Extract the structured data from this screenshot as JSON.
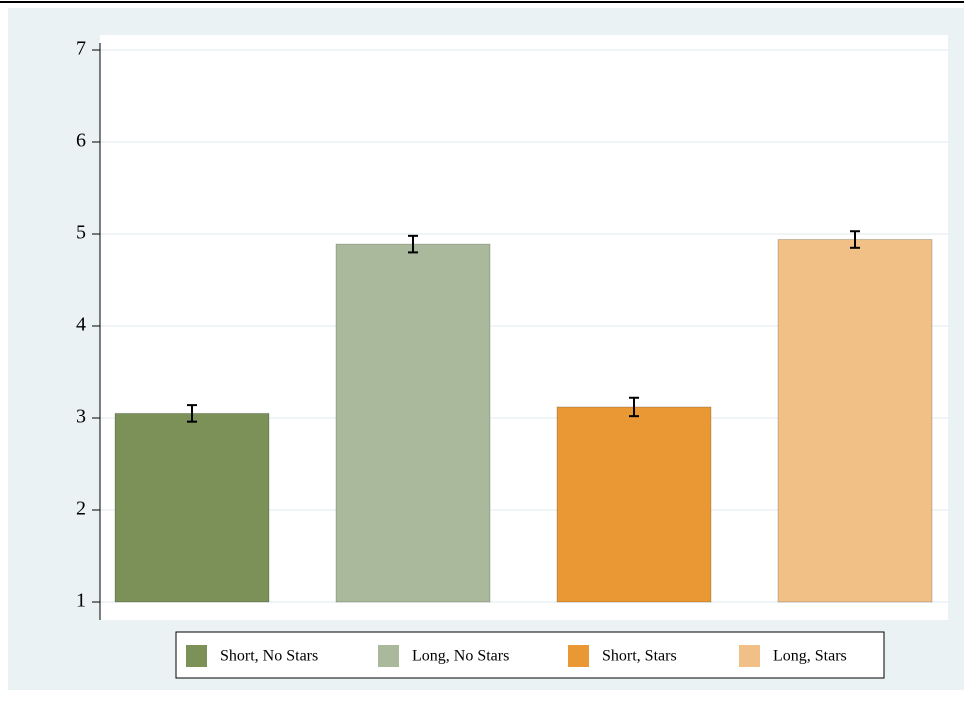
{
  "chart_data": {
    "type": "bar",
    "series": [
      {
        "name": "Short, No Stars",
        "color": "#7b9158",
        "values": [
          3.05
        ],
        "errors": [
          0.09
        ]
      },
      {
        "name": "Long, No Stars",
        "color": "#aab99c",
        "values": [
          4.89
        ],
        "errors": [
          0.09
        ]
      },
      {
        "name": "Short, Stars",
        "color": "#e99834",
        "values": [
          3.12
        ],
        "errors": [
          0.1
        ]
      },
      {
        "name": "Long, Stars",
        "color": "#f1c086",
        "values": [
          4.94
        ],
        "errors": [
          0.09
        ]
      }
    ],
    "ylim": [
      1,
      7
    ],
    "yticks": [
      1,
      2,
      3,
      4,
      5,
      6,
      7
    ],
    "grid": true,
    "legend": "bottom"
  }
}
